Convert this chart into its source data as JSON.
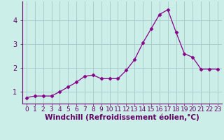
{
  "x": [
    0,
    1,
    2,
    3,
    4,
    5,
    6,
    7,
    8,
    9,
    10,
    11,
    12,
    13,
    14,
    15,
    16,
    17,
    18,
    19,
    20,
    21,
    22,
    23
  ],
  "y": [
    0.75,
    0.82,
    0.82,
    0.82,
    1.0,
    1.2,
    1.4,
    1.65,
    1.7,
    1.55,
    1.55,
    1.55,
    1.9,
    2.35,
    3.05,
    3.65,
    4.25,
    4.45,
    3.5,
    2.6,
    2.45,
    1.95,
    1.95,
    1.95
  ],
  "line_color": "#880088",
  "marker": "D",
  "marker_size": 2.5,
  "bg_color": "#cceee8",
  "grid_color": "#aacccc",
  "xlabel": "Windchill (Refroidissement éolien,°C)",
  "xlabel_fontsize": 7.5,
  "yticks": [
    1,
    2,
    3,
    4
  ],
  "xtick_labels": [
    "0",
    "1",
    "2",
    "3",
    "4",
    "5",
    "6",
    "7",
    "8",
    "9",
    "10",
    "11",
    "12",
    "13",
    "14",
    "15",
    "16",
    "17",
    "18",
    "19",
    "20",
    "21",
    "22",
    "23"
  ],
  "ylim": [
    0.5,
    4.8
  ],
  "xlim": [
    -0.5,
    23.5
  ],
  "tick_fontsize": 7,
  "label_color": "#660066"
}
